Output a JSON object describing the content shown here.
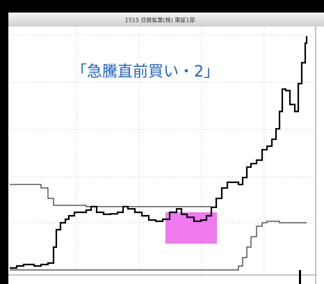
{
  "chart_data": {
    "type": "step-line",
    "title": "1515 日鉄鉱業(株) 東証1部",
    "annotation": "「急騰直前買い・2」",
    "xlim": [
      0,
      440
    ],
    "ylim": [
      0,
      100
    ],
    "x": [
      0,
      10,
      20,
      35,
      45,
      55,
      63,
      67,
      73,
      80,
      85,
      93,
      100,
      110,
      117,
      125,
      135,
      145,
      155,
      163,
      170,
      180,
      190,
      200,
      210,
      220,
      230,
      240,
      247,
      255,
      265,
      275,
      283,
      290,
      297,
      305,
      313,
      321,
      329,
      335,
      341,
      347,
      355,
      363,
      370,
      377,
      383,
      388,
      392,
      397,
      403,
      410,
      415,
      420,
      425,
      427
    ],
    "series": [
      {
        "color": "#000000",
        "width": 2.2,
        "values": [
          2.8,
          3.6,
          4.2,
          3.6,
          4.2,
          4.8,
          11.2,
          18.2,
          21.0,
          22.4,
          23.8,
          25.2,
          25.2,
          26.1,
          27.5,
          25.2,
          24.4,
          24.6,
          25.2,
          27.5,
          26.6,
          25.2,
          23.8,
          22.1,
          21.6,
          22.4,
          25.2,
          26.6,
          24.4,
          23.2,
          21.6,
          22.1,
          23.8,
          27.2,
          30.8,
          35.0,
          37.3,
          37.3,
          36.4,
          39.2,
          43.4,
          44.8,
          46.2,
          50.4,
          51.8,
          54.6,
          58.8,
          65.8,
          74.8,
          74.2,
          68.6,
          65.8,
          77.0,
          85.4,
          93.3,
          96.1
        ]
      },
      {
        "color": "#000000",
        "width": 1,
        "values": [
          2.0,
          2.0,
          2.0,
          2.0,
          2.0,
          2.0,
          2.0,
          2.0,
          2.0,
          2.0,
          2.0,
          2.0,
          2.0,
          2.0,
          2.0,
          2.0,
          2.0,
          2.0,
          2.0,
          2.0,
          2.0,
          2.0,
          2.0,
          2.0,
          2.0,
          2.0,
          2.0,
          2.0,
          2.0,
          2.0,
          2.0,
          2.0,
          2.0,
          2.0,
          2.0,
          2.0,
          2.0,
          2.0,
          3.6,
          7.0,
          11.2,
          15.4,
          19.6,
          21.0,
          21.6,
          21.6,
          21.6,
          21.0,
          21.0,
          21.0,
          21.0,
          21.0,
          21.0,
          21.0,
          21.0,
          21.0
        ]
      },
      {
        "color": "#000000",
        "width": 1,
        "values": [
          36.4,
          36.4,
          36.4,
          36.4,
          35.0,
          30.8,
          28.0,
          28.0,
          28.0,
          28.0,
          28.0,
          28.0,
          28.0,
          27.5,
          27.5,
          27.5,
          27.5,
          27.5,
          27.5,
          27.5,
          27.5,
          27.5,
          27.5,
          27.5,
          27.5,
          27.5,
          27.5,
          27.5,
          27.5,
          27.5,
          27.5,
          27.5,
          27.5,
          27.5,
          null,
          null,
          null,
          null,
          null,
          null,
          null,
          null,
          null,
          null,
          null,
          null,
          null,
          null,
          null,
          null,
          null,
          null,
          null,
          null,
          null,
          null
        ]
      }
    ]
  }
}
